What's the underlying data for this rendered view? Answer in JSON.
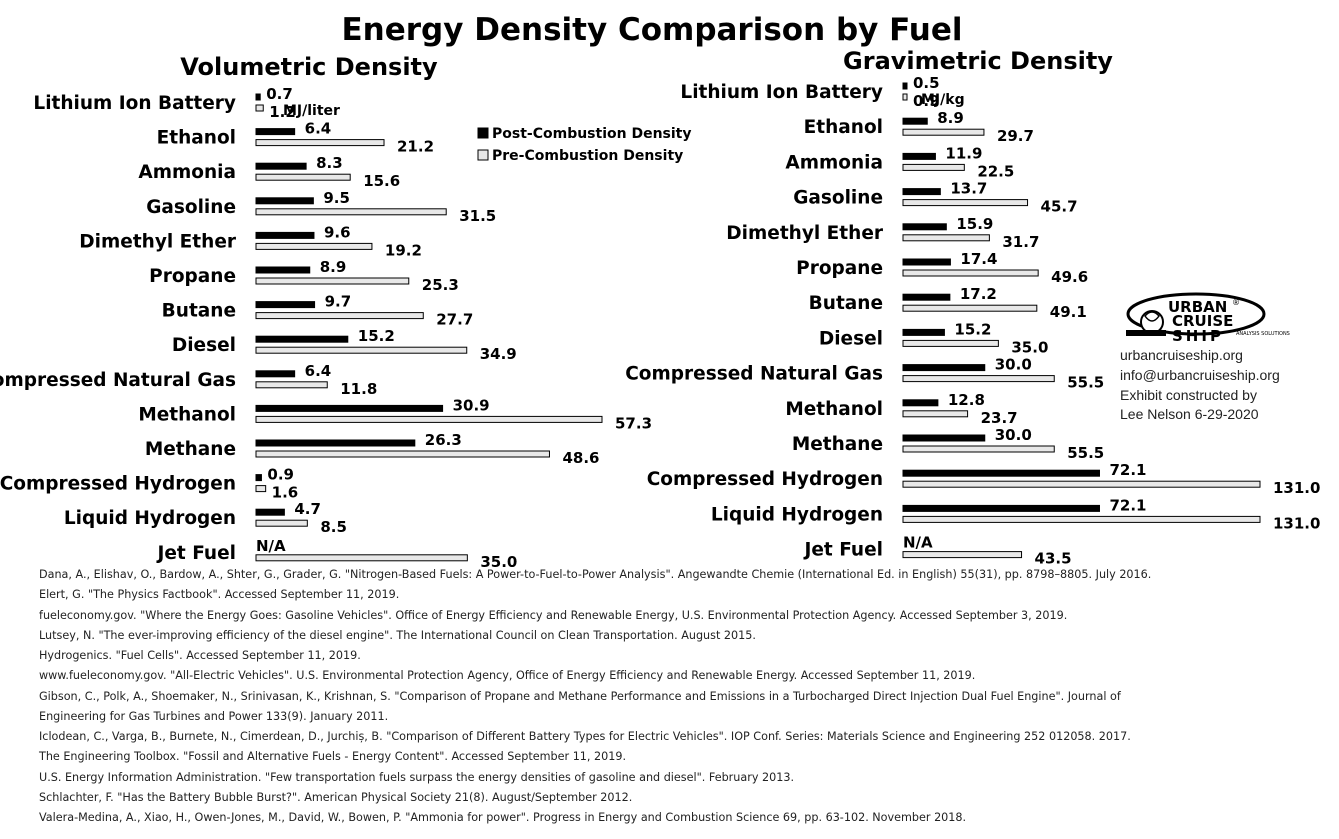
{
  "chart_data": {
    "title": "Energy Density Comparison by Fuel",
    "legend": {
      "post": "Post-Combustion Density",
      "pre": "Pre-Combustion Density",
      "post_color": "#000000",
      "pre_color": "#e8e8e8",
      "placement": "top-center"
    },
    "panels": [
      {
        "type": "bar",
        "orientation": "horizontal",
        "subtitle": "Volumetric Density",
        "unit": "MJ/liter",
        "categories": [
          "Lithium Ion Battery",
          "Ethanol",
          "Ammonia",
          "Gasoline",
          "Dimethyl Ether",
          "Propane",
          "Butane",
          "Diesel",
          "Compressed Natural Gas",
          "Methanol",
          "Methane",
          "Compressed Hydrogen",
          "Liquid Hydrogen",
          "Jet Fuel"
        ],
        "series": [
          {
            "name": "Post-Combustion Density",
            "values": [
              0.7,
              6.4,
              8.3,
              9.5,
              9.6,
              8.9,
              9.7,
              15.2,
              6.4,
              30.9,
              26.3,
              0.9,
              4.7,
              null
            ],
            "labels": [
              "0.7",
              "6.4",
              "8.3",
              "9.5",
              "9.6",
              "8.9",
              "9.7",
              "15.2",
              "6.4",
              "30.9",
              "26.3",
              "0.9",
              "4.7",
              "N/A"
            ]
          },
          {
            "name": "Pre-Combustion Density",
            "values": [
              1.2,
              21.2,
              15.6,
              31.5,
              19.2,
              25.3,
              27.7,
              34.9,
              11.8,
              57.3,
              48.6,
              1.6,
              8.5,
              35.0
            ],
            "labels": [
              "1.2",
              "21.2",
              "15.6",
              "31.5",
              "19.2",
              "25.3",
              "27.7",
              "34.9",
              "11.8",
              "57.3",
              "48.6",
              "1.6",
              "8.5",
              "35.0"
            ]
          }
        ],
        "xlim": [
          0,
          60
        ]
      },
      {
        "type": "bar",
        "orientation": "horizontal",
        "subtitle": "Gravimetric Density",
        "unit": "MJ/kg",
        "categories": [
          "Lithium Ion Battery",
          "Ethanol",
          "Ammonia",
          "Gasoline",
          "Dimethyl Ether",
          "Propane",
          "Butane",
          "Diesel",
          "Compressed Natural Gas",
          "Methanol",
          "Methane",
          "Compressed Hydrogen",
          "Liquid Hydrogen",
          "Jet Fuel"
        ],
        "series": [
          {
            "name": "Post-Combustion Density",
            "values": [
              0.5,
              8.9,
              11.9,
              13.7,
              15.9,
              17.4,
              17.2,
              15.2,
              30.0,
              12.8,
              30.0,
              72.1,
              72.1,
              null
            ],
            "labels": [
              "0.5",
              "8.9",
              "11.9",
              "13.7",
              "15.9",
              "17.4",
              "17.2",
              "15.2",
              "30.0",
              "12.8",
              "30.0",
              "72.1",
              "72.1",
              "N/A"
            ]
          },
          {
            "name": "Pre-Combustion Density",
            "values": [
              0.9,
              29.7,
              22.5,
              45.7,
              31.7,
              49.6,
              49.1,
              35.0,
              55.5,
              23.7,
              55.5,
              131.0,
              131.0,
              43.5
            ],
            "labels": [
              "0.9",
              "29.7",
              "22.5",
              "45.7",
              "31.7",
              "49.6",
              "49.1",
              "35.0",
              "55.5",
              "23.7",
              "55.5",
              "131.0",
              "131.0",
              "43.5"
            ]
          }
        ],
        "xlim": [
          0,
          131
        ]
      }
    ]
  },
  "logo": {
    "lines": [
      "URBAN",
      "CRUISE",
      "SHIP"
    ],
    "tag": "ANALYSIS SOLUTIONS",
    "mark": "®"
  },
  "contact": {
    "website": "urbancruiseship.org",
    "email": "info@urbancruiseship.org",
    "credit1": "Exhibit constructed by",
    "credit2": "Lee Nelson 6-29-2020"
  },
  "references": [
    "Dana, A., Elishav, O., Bardow, A., Shter, G., Grader, G. \"Nitrogen-Based Fuels: A Power-to-Fuel-to-Power Analysis\". Angewandte Chemie (International Ed. in English) 55(31), pp. 8798–8805. July 2016.",
    "Elert, G. \"The Physics Factbook\". Accessed September 11, 2019.",
    "fueleconomy.gov. \"Where the Energy Goes: Gasoline Vehicles\". Office of Energy Efficiency and Renewable Energy, U.S. Environmental Protection Agency. Accessed September 3, 2019.",
    "Lutsey, N. \"The ever-improving efficiency of the diesel engine\". The International Council on Clean Transportation. August 2015.",
    "Hydrogenics. \"Fuel Cells\". Accessed  September 11, 2019.",
    "www.fueleconomy.gov. \"All-Electric Vehicles\". U.S. Environmental Protection Agency, Office of Energy Efficiency and Renewable Energy. Accessed September 11, 2019.",
    "Gibson, C., Polk, A., Shoemaker, N., Srinivasan, K., Krishnan, S. \"Comparison of Propane and Methane Performance and Emissions in a Turbocharged Direct Injection Dual Fuel Engine\". Journal of",
    "Engineering for Gas Turbines and Power 133(9). January 2011.",
    "Iclodean, C., Varga, B., Burnete, N., Cimerdean, D., Jurchiș, B. \"Comparison of Different Battery Types for Electric Vehicles\". IOP Conf. Series: Materials Science and Engineering 252 012058. 2017.",
    "The Engineering Toolbox. \"Fossil and Alternative Fuels - Energy Content\". Accessed September 11, 2019.",
    "U.S. Energy Information Administration. \"Few transportation fuels surpass the energy densities of gasoline and diesel\". February 2013.",
    "Schlachter, F. \"Has the Battery Bubble Burst?\". American Physical Society 21(8). August/September 2012.",
    "Valera-Medina, A., Xiao, H., Owen-Jones, M., David, W., Bowen, P. \"Ammonia for power\". Progress in Energy and Combustion Science 69, pp. 63-102. November 2018."
  ]
}
